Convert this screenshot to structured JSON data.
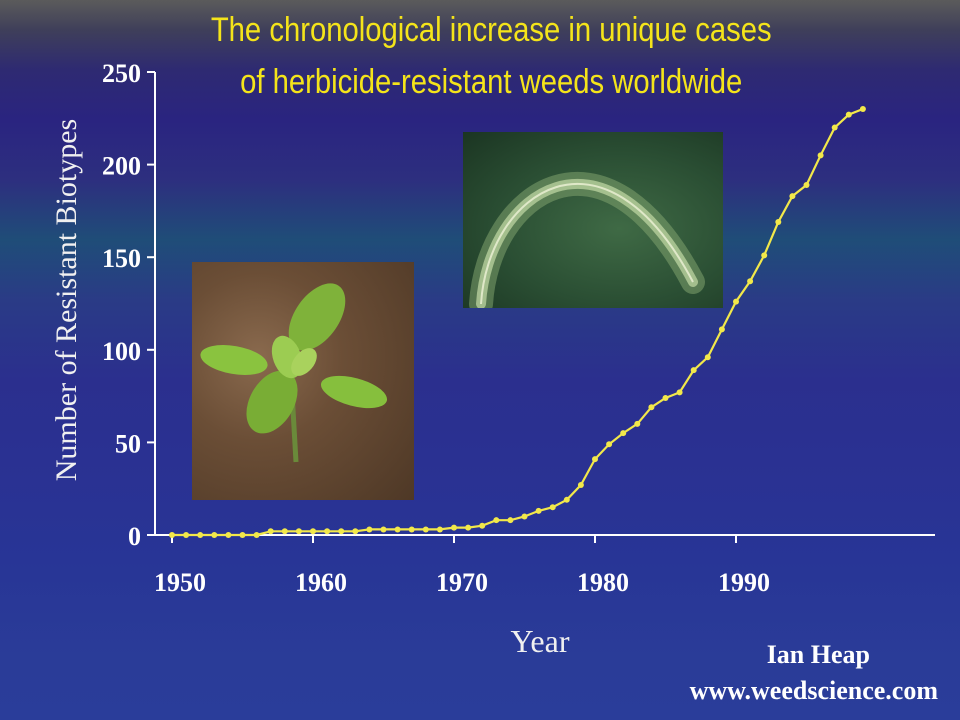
{
  "title": {
    "line1": "The chronological increase in unique cases",
    "line2": "of herbicide-resistant weeds worldwide"
  },
  "credit": {
    "author": "Ian Heap",
    "url": "www.weedscience.com"
  },
  "colors": {
    "title": "#f4e41a",
    "line": "#f2e84a",
    "axis": "#ffffff"
  },
  "chart_data": {
    "type": "line",
    "title": "The chronological increase in unique cases of herbicide-resistant weeds worldwide",
    "xlabel": "Year",
    "ylabel": "Number of Resistant Biotypes",
    "xlim": [
      1950,
      1999
    ],
    "ylim": [
      0,
      250
    ],
    "x_ticks": [
      1950,
      1960,
      1970,
      1980,
      1990
    ],
    "y_ticks": [
      0,
      50,
      100,
      150,
      200,
      250
    ],
    "grid": false,
    "series": [
      {
        "x": [
          1950,
          1951,
          1952,
          1953,
          1954,
          1955,
          1956,
          1957,
          1958,
          1959,
          1960,
          1961,
          1962,
          1963,
          1964,
          1965,
          1966,
          1967,
          1968,
          1969,
          1970,
          1971,
          1972,
          1973,
          1974,
          1975,
          1976,
          1977,
          1978,
          1979,
          1980,
          1981,
          1982,
          1983,
          1984,
          1985,
          1986,
          1987,
          1988,
          1989,
          1990,
          1991,
          1992,
          1993,
          1994,
          1995,
          1996,
          1997,
          1998,
          1999
        ],
        "y": [
          0,
          0,
          0,
          0,
          0,
          0,
          0,
          2,
          2,
          2,
          2,
          2,
          2,
          2,
          3,
          3,
          3,
          3,
          3,
          3,
          4,
          4,
          5,
          8,
          8,
          10,
          13,
          15,
          19,
          27,
          41,
          49,
          55,
          60,
          69,
          74,
          77,
          89,
          96,
          111,
          126,
          137,
          151,
          169,
          183,
          189,
          205,
          220,
          227,
          230
        ]
      }
    ]
  }
}
